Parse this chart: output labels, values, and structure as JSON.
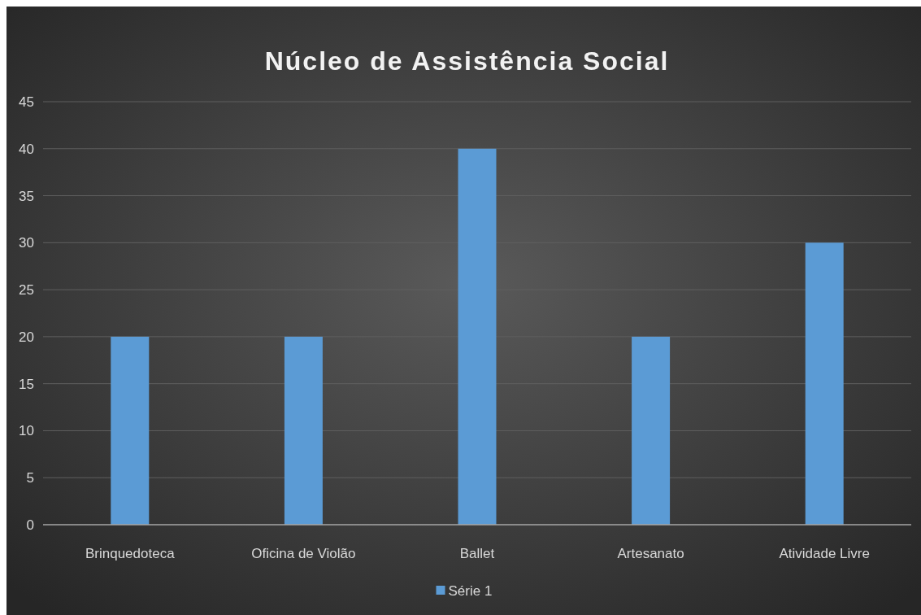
{
  "chart_data": {
    "type": "bar",
    "title": "Núcleo de Assistência Social",
    "categories": [
      "Brinquedoteca",
      "Oficina de Violão",
      "Ballet",
      "Artesanato",
      "Atividade Livre"
    ],
    "series": [
      {
        "name": "Série 1",
        "color": "#5b9bd5",
        "values": [
          20,
          20,
          40,
          20,
          30
        ]
      }
    ],
    "ylim": [
      0,
      45
    ],
    "yticks": [
      0,
      5,
      10,
      15,
      20,
      25,
      30,
      35,
      40,
      45
    ],
    "grid": "y",
    "legend": "bottom"
  }
}
